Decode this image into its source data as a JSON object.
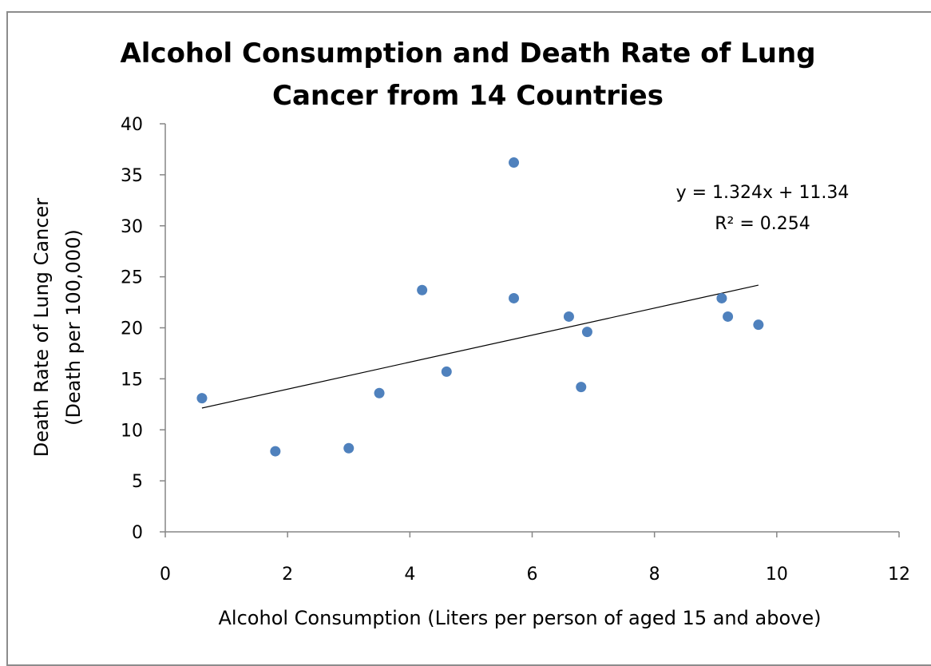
{
  "chart_data": {
    "type": "scatter",
    "title": [
      "Alcohol Consumption and Death Rate of Lung",
      "Cancer from 14 Countries"
    ],
    "xlabel": "Alcohol Consumption (Liters per person of aged 15 and above)",
    "ylabel": [
      "Death Rate of Lung Cancer",
      "(Death per 100,000)"
    ],
    "xlim": [
      0,
      12
    ],
    "ylim": [
      0,
      40
    ],
    "xticks": [
      0,
      2,
      4,
      6,
      8,
      10,
      12
    ],
    "yticks": [
      0,
      5,
      10,
      15,
      20,
      25,
      30,
      35,
      40
    ],
    "grid": false,
    "legend": "none",
    "marker_color": "#4f81bd",
    "points": [
      {
        "x": 0.6,
        "y": 13.1
      },
      {
        "x": 1.8,
        "y": 7.9
      },
      {
        "x": 3.0,
        "y": 8.2
      },
      {
        "x": 3.5,
        "y": 13.6
      },
      {
        "x": 4.2,
        "y": 23.7
      },
      {
        "x": 4.6,
        "y": 15.7
      },
      {
        "x": 5.7,
        "y": 36.2
      },
      {
        "x": 5.7,
        "y": 22.9
      },
      {
        "x": 6.6,
        "y": 21.1
      },
      {
        "x": 6.8,
        "y": 14.2
      },
      {
        "x": 6.9,
        "y": 19.6
      },
      {
        "x": 9.1,
        "y": 22.9
      },
      {
        "x": 9.2,
        "y": 21.1
      },
      {
        "x": 9.7,
        "y": 20.3
      }
    ],
    "trendline": {
      "type": "linear",
      "slope": 1.324,
      "intercept": 11.34,
      "x_range": [
        0.6,
        9.7
      ],
      "equation_label": "y = 1.324x + 11.34",
      "r2_label": "R² = 0.254"
    }
  }
}
